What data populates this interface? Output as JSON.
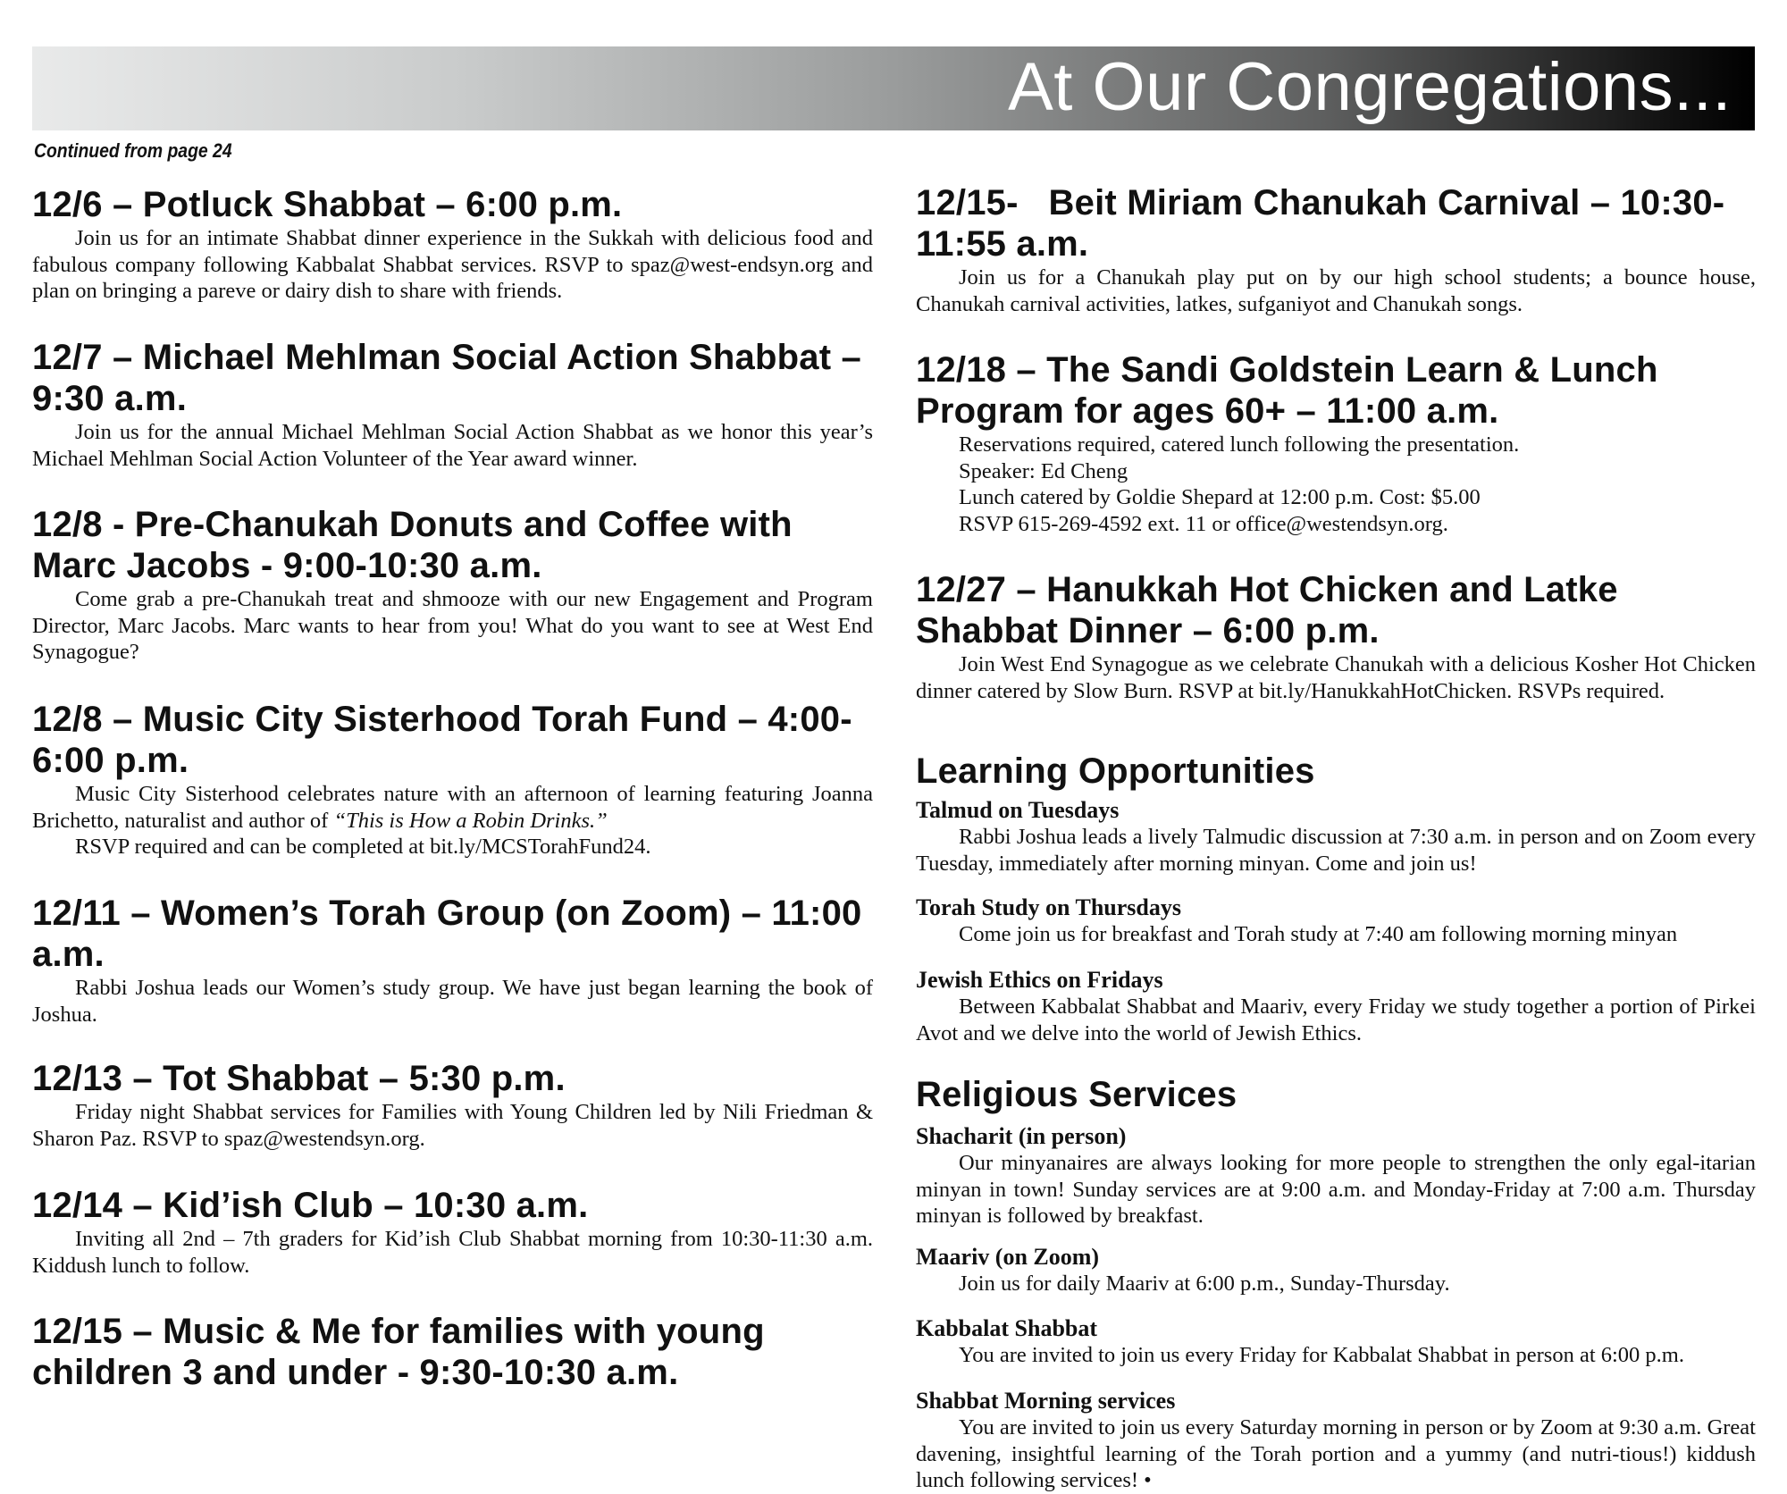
{
  "header": {
    "title": "At Our Congregations...",
    "continued": "Continued from page 24"
  },
  "left_events": [
    {
      "title": "12/6 – Potluck Shabbat – 6:00 p.m.",
      "paragraphs": [
        "Join us for an intimate Shabbat dinner experience in the Sukkah with delicious food and fabulous company following Kabbalat Shabbat services. RSVP to spaz@west-endsyn.org and plan on bringing a pareve or dairy dish to share with friends."
      ]
    },
    {
      "title": "12/7 – Michael Mehlman Social Action Shabbat – 9:30 a.m.",
      "paragraphs": [
        "Join us for the annual Michael Mehlman Social Action Shabbat as we honor this year’s Michael Mehlman Social Action Volunteer of the Year award winner."
      ]
    },
    {
      "title": "12/8 - Pre-Chanukah Donuts and Coffee with Marc Jacobs - 9:00-10:30 a.m.",
      "paragraphs": [
        "Come grab a pre-Chanukah treat and shmooze with our new Engagement and Program Director, Marc Jacobs. Marc wants to hear from you! What do you want to see at West End Synagogue?"
      ]
    },
    {
      "title": "12/8 – Music City Sisterhood Torah Fund – 4:00-6:00 p.m.",
      "paragraphs": [
        "Music City Sisterhood celebrates nature with an afternoon of learning featuring Joanna Brichetto, naturalist and author of ",
        "RSVP required and can be completed at bit.ly/MCSTorahFund24."
      ],
      "italic_title": "“This is How a Robin Drinks.”"
    },
    {
      "title": "12/11 – Women’s Torah Group (on Zoom) – 11:00 a.m.",
      "paragraphs": [
        "Rabbi Joshua leads our Women’s study group. We have just began learning the book of Joshua."
      ]
    },
    {
      "title": "12/13 – Tot Shabbat – 5:30 p.m.",
      "paragraphs": [
        "Friday night Shabbat services for Families with Young Children led by Nili Friedman & Sharon Paz. RSVP to spaz@westendsyn.org."
      ]
    },
    {
      "title": "12/14 – Kid’ish Club – 10:30 a.m.",
      "paragraphs": [
        "Inviting all 2nd – 7th graders for Kid’ish Club Shabbat morning from 10:30-11:30 a.m. Kiddush lunch to follow."
      ]
    },
    {
      "title": "12/15 – Music & Me for families with young children 3 and under - 9:30-10:30 a.m.",
      "paragraphs": []
    }
  ],
  "right_events": [
    {
      "title": "12/15-   Beit Miriam Chanukah Carnival – 10:30-11:55 a.m.",
      "paragraphs": [
        "Join us for a Chanukah play put on by our high school students; a bounce house, Chanukah carnival activities, latkes, sufganiyot and Chanukah songs."
      ]
    },
    {
      "title": "12/18 – The Sandi Goldstein Learn & Lunch Program for ages 60+ – 11:00 a.m.",
      "lines": [
        "Reservations required, catered lunch following the presentation.",
        "Speaker: Ed Cheng",
        "Lunch catered by Goldie Shepard at 12:00 p.m. Cost: $5.00",
        "RSVP 615-269-4592 ext. 11 or office@westendsyn.org."
      ]
    },
    {
      "title": "12/27 – Hanukkah Hot Chicken and Latke Shabbat Dinner – 6:00 p.m.",
      "paragraphs": [
        "Join West End Synagogue as we celebrate Chanukah with a delicious Kosher Hot Chicken dinner catered by Slow Burn. RSVP at bit.ly/HanukkahHotChicken. RSVPs required."
      ]
    }
  ],
  "learning": {
    "title": "Learning Opportunities",
    "items": [
      {
        "title": "Talmud on Tuesdays",
        "text": "Rabbi Joshua leads a lively Talmudic discussion at 7:30 a.m. in person and on Zoom every Tuesday, immediately after morning minyan. Come and join us!"
      },
      {
        "title": "Torah Study on Thursdays",
        "text": "Come join us for breakfast and Torah study at 7:40 am following morning minyan"
      },
      {
        "title": "Jewish Ethics on Fridays",
        "text": "Between Kabbalat Shabbat and Maariv, every Friday we study together a portion of Pirkei Avot and we delve into the world of Jewish Ethics."
      }
    ]
  },
  "services": {
    "title": "Religious Services",
    "items": [
      {
        "title": "Shacharit (in person)",
        "text": "Our minyanaires are always looking for more people to strengthen the only egal-itarian minyan in town!  Sunday services are at 9:00 a.m. and Monday-Friday at 7:00 a.m. Thursday minyan is followed by breakfast."
      },
      {
        "title": "Maariv (on Zoom)",
        "text": "Join us for daily Maariv at 6:00 p.m., Sunday-Thursday."
      },
      {
        "title": "Kabbalat Shabbat",
        "text": "You are invited to join us every Friday for Kabbalat Shabbat in person at 6:00 p.m."
      },
      {
        "title": "Shabbat Morning services",
        "text": "You are invited to join us every Saturday morning in person or by Zoom at 9:30 a.m. Great davening, insightful learning of the Torah portion and a yummy (and nutri-tious!) kiddush lunch following services! •"
      }
    ]
  }
}
